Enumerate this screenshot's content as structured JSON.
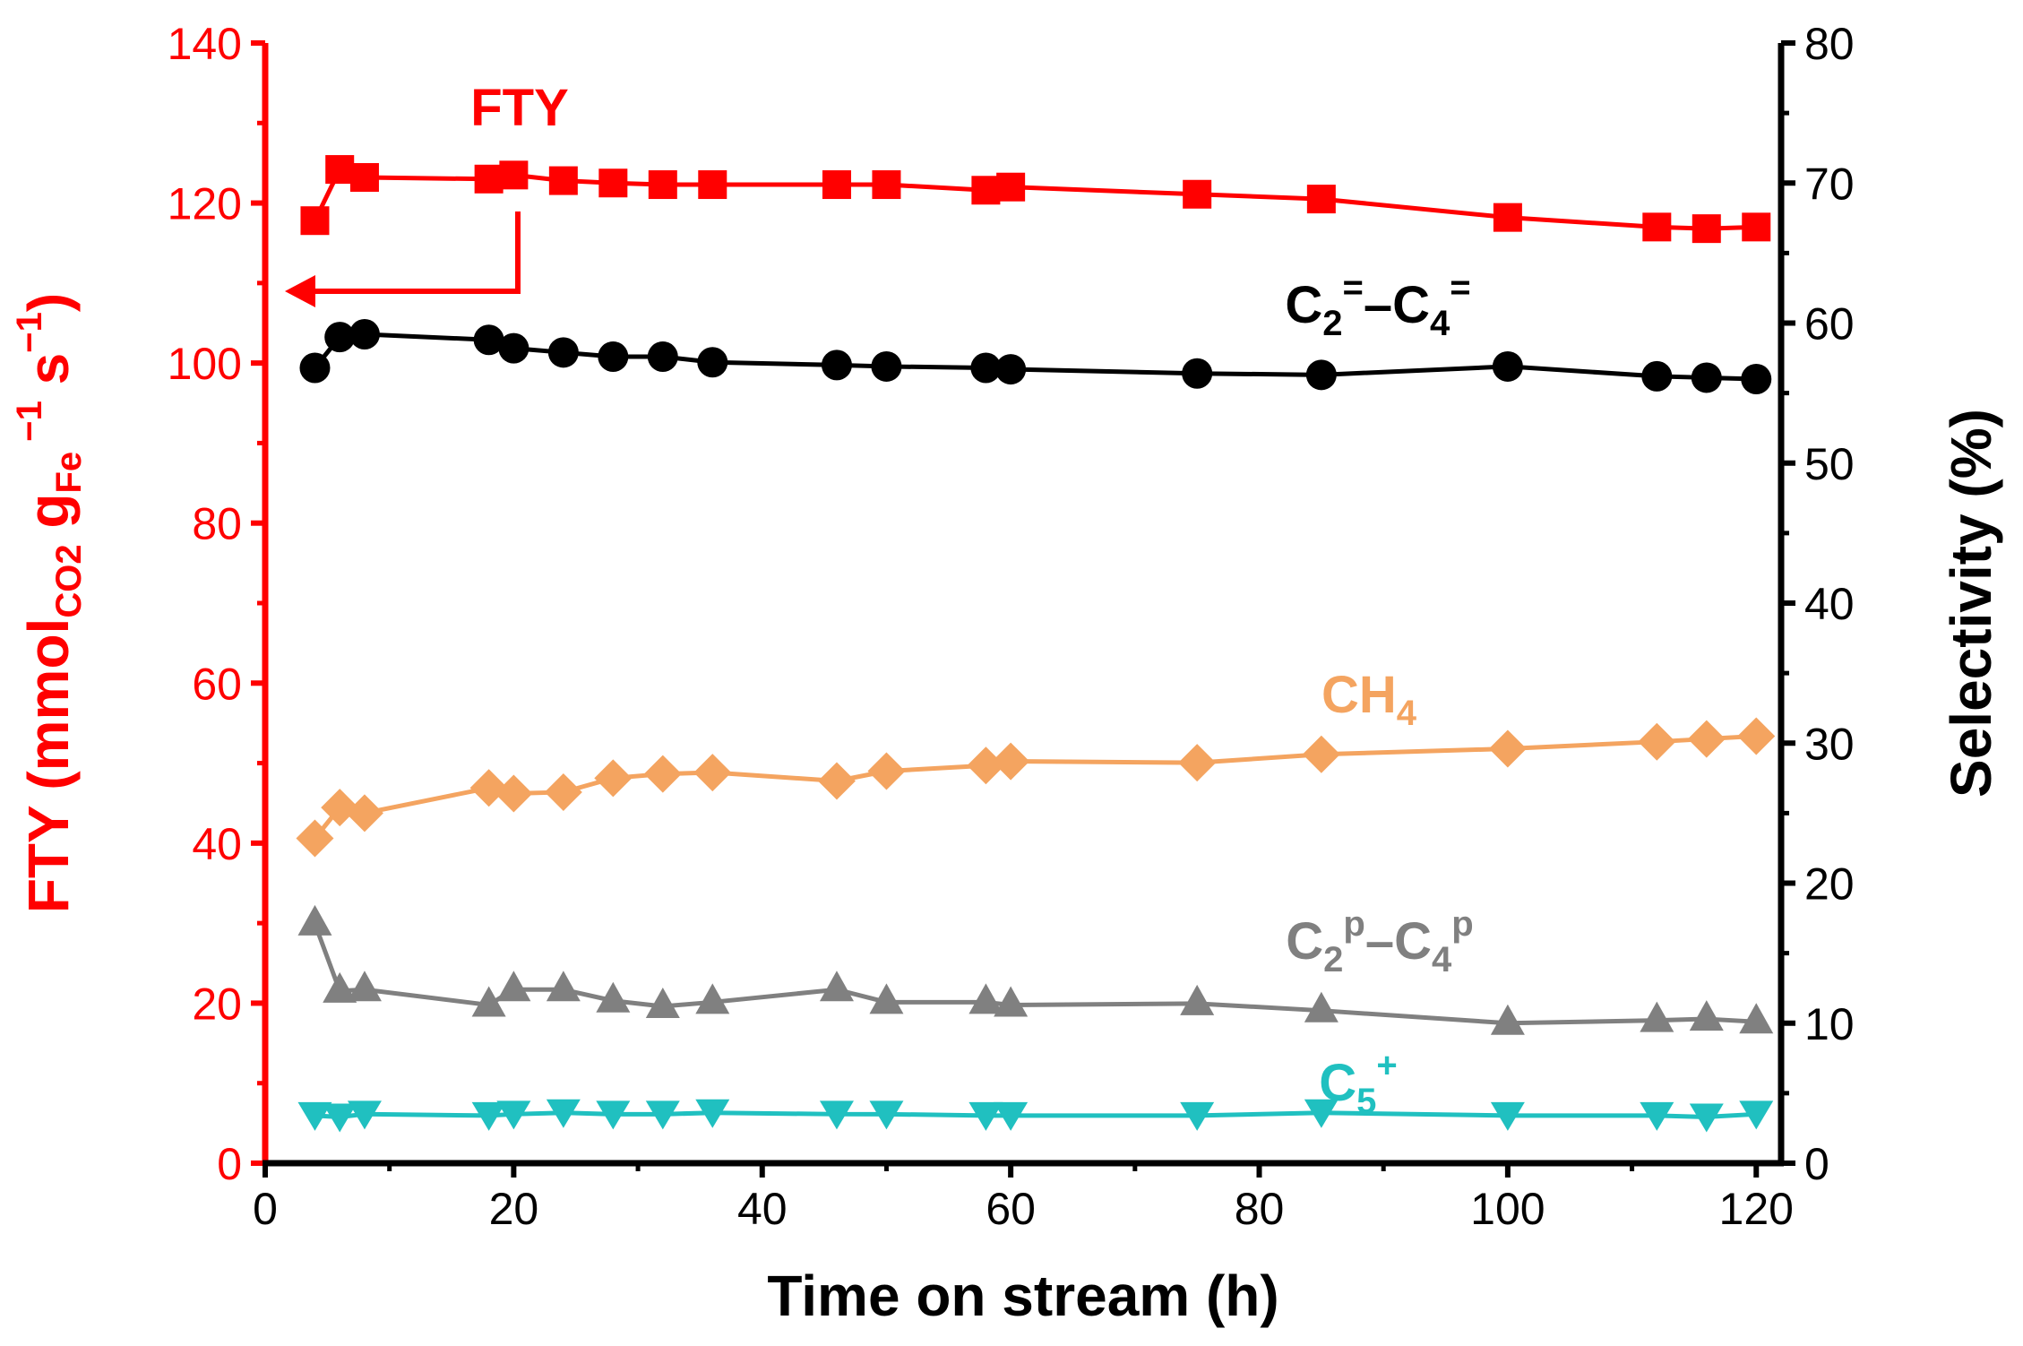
{
  "chart_data": {
    "type": "line",
    "xlabel": "Time on stream (h)",
    "ylabel_left": {
      "main": "FTY (mmol",
      "sub_co2": "CO2",
      "g": " g",
      "sub_fe": "Fe",
      "sup1": " −1",
      "s": " s",
      "sup2": "−1",
      "close": ")"
    },
    "ylabel_right": "Selectivity (%)",
    "xlim": [
      0,
      122
    ],
    "ylim_left": [
      0,
      140
    ],
    "ylim_right": [
      0,
      80
    ],
    "x_ticks": [
      "0",
      "20",
      "40",
      "60",
      "80",
      "100",
      "120"
    ],
    "y_left_ticks": [
      "0",
      "20",
      "40",
      "60",
      "80",
      "100",
      "120",
      "140"
    ],
    "y_right_ticks": [
      "0",
      "10",
      "20",
      "30",
      "40",
      "50",
      "60",
      "70",
      "80"
    ],
    "colors": {
      "left_axis": "#ff0000",
      "right_axis": "#000000"
    },
    "series": [
      {
        "name": "FTY",
        "axis": "left",
        "marker": "square",
        "color": "#ff0000",
        "label_main": "FTY",
        "label_sub": "",
        "label_sup": "",
        "label_main2": "",
        "label_sub2": "",
        "label_sup2": "",
        "x": [
          4,
          6,
          8,
          18,
          20,
          24,
          28,
          32,
          36,
          46,
          50,
          58,
          60,
          75,
          85,
          100,
          112,
          116,
          120
        ],
        "values": [
          117.8,
          124.2,
          123.2,
          123,
          123.5,
          122.8,
          122.5,
          122.3,
          122.3,
          122.3,
          122.3,
          121.6,
          122,
          121.1,
          120.5,
          118.2,
          117,
          116.8,
          117
        ]
      },
      {
        "name": "C2=–C4=",
        "axis": "right",
        "marker": "circle",
        "color": "#000000",
        "label_main": "C",
        "label_sub": "2",
        "label_sup": "=",
        "label_main2": "–C",
        "label_sub2": "4",
        "label_sup2": "=",
        "x": [
          4,
          6,
          8,
          18,
          20,
          24,
          28,
          32,
          36,
          46,
          50,
          58,
          60,
          75,
          85,
          100,
          112,
          116,
          120
        ],
        "values": [
          56.8,
          59,
          59.2,
          58.8,
          58.2,
          57.9,
          57.6,
          57.6,
          57.2,
          57,
          56.9,
          56.8,
          56.7,
          56.4,
          56.3,
          56.9,
          56.2,
          56.1,
          56
        ]
      },
      {
        "name": "CH4",
        "axis": "right",
        "marker": "diamond",
        "color": "#f4a460",
        "label_main": "CH",
        "label_sub": "4",
        "label_sup": "",
        "label_main2": "",
        "label_sub2": "",
        "label_sup2": "",
        "x": [
          4,
          6,
          8,
          18,
          20,
          24,
          28,
          32,
          36,
          46,
          50,
          58,
          60,
          75,
          85,
          100,
          112,
          116,
          120
        ],
        "values": [
          23.2,
          25.4,
          25,
          26.8,
          26.4,
          26.5,
          27.5,
          27.8,
          27.9,
          27.3,
          28,
          28.4,
          28.7,
          28.6,
          29.2,
          29.6,
          30.1,
          30.3,
          30.5
        ]
      },
      {
        "name": "C2p–C4p",
        "axis": "right",
        "marker": "triangle-up",
        "color": "#808080",
        "label_main": "C",
        "label_sub": "2",
        "label_sup": "p",
        "label_main2": "–C",
        "label_sub2": "4",
        "label_sup2": "p",
        "x": [
          4,
          6,
          8,
          18,
          20,
          24,
          28,
          32,
          36,
          46,
          50,
          58,
          60,
          75,
          85,
          100,
          112,
          116,
          120
        ],
        "values": [
          17.1,
          12.3,
          12.4,
          11.3,
          12.4,
          12.4,
          11.6,
          11.2,
          11.5,
          12.4,
          11.5,
          11.5,
          11.3,
          11.4,
          10.9,
          10,
          10.2,
          10.3,
          10.1
        ]
      },
      {
        "name": "C5+",
        "axis": "right",
        "marker": "triangle-down",
        "color": "#20c0c0",
        "label_main": "C",
        "label_sub": "5",
        "label_sup": "+",
        "label_main2": "",
        "label_sub2": "",
        "label_sup2": "",
        "x": [
          4,
          6,
          8,
          18,
          20,
          24,
          28,
          32,
          36,
          46,
          50,
          58,
          60,
          75,
          85,
          100,
          112,
          116,
          120
        ],
        "values": [
          3.4,
          3.3,
          3.5,
          3.4,
          3.5,
          3.6,
          3.5,
          3.5,
          3.6,
          3.5,
          3.5,
          3.4,
          3.4,
          3.4,
          3.6,
          3.4,
          3.4,
          3.3,
          3.5
        ]
      }
    ]
  }
}
